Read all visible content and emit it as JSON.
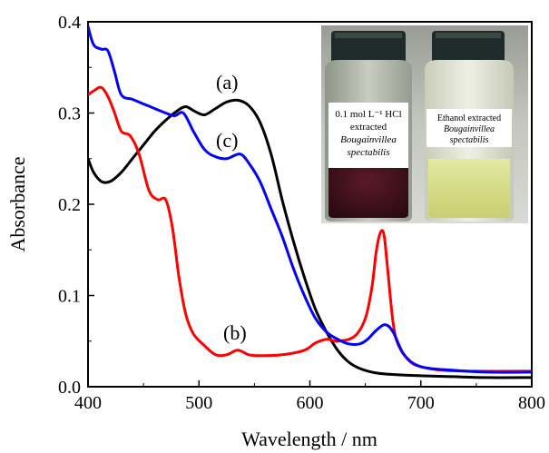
{
  "chart_data": {
    "type": "line",
    "xlabel": "Wavelength / nm",
    "ylabel": "Absorbance",
    "xlim": [
      400,
      800
    ],
    "ylim": [
      0.0,
      0.4
    ],
    "xticks": [
      "400",
      "500",
      "600",
      "700",
      "800"
    ],
    "yticks": [
      "0.0",
      "0.1",
      "0.2",
      "0.3",
      "0.4"
    ],
    "grid": false,
    "legend": "none",
    "series": [
      {
        "label": "(a)",
        "color": "#000000",
        "x": [
          400,
          405,
          412,
          420,
          430,
          440,
          450,
          460,
          470,
          480,
          488,
          496,
          505,
          515,
          525,
          535,
          545,
          555,
          565,
          575,
          585,
          595,
          605,
          615,
          625,
          635,
          645,
          660,
          680,
          700,
          730,
          760,
          800
        ],
        "y": [
          0.25,
          0.235,
          0.225,
          0.225,
          0.235,
          0.25,
          0.265,
          0.28,
          0.292,
          0.302,
          0.307,
          0.302,
          0.298,
          0.305,
          0.312,
          0.314,
          0.308,
          0.29,
          0.255,
          0.205,
          0.16,
          0.12,
          0.085,
          0.06,
          0.04,
          0.027,
          0.02,
          0.015,
          0.013,
          0.012,
          0.011,
          0.01,
          0.01
        ]
      },
      {
        "label": "(b)",
        "color": "#ff0000",
        "x": [
          400,
          406,
          412,
          418,
          424,
          430,
          438,
          446,
          455,
          463,
          470,
          476,
          482,
          488,
          495,
          505,
          515,
          525,
          535,
          545,
          555,
          575,
          595,
          605,
          615,
          625,
          640,
          650,
          656,
          660,
          664,
          667,
          670,
          675,
          680,
          690,
          700,
          720,
          750,
          800
        ],
        "y": [
          0.32,
          0.325,
          0.328,
          0.318,
          0.3,
          0.28,
          0.275,
          0.255,
          0.215,
          0.205,
          0.205,
          0.175,
          0.12,
          0.08,
          0.058,
          0.045,
          0.035,
          0.035,
          0.04,
          0.035,
          0.034,
          0.035,
          0.04,
          0.048,
          0.052,
          0.05,
          0.055,
          0.075,
          0.11,
          0.15,
          0.17,
          0.165,
          0.13,
          0.07,
          0.045,
          0.028,
          0.022,
          0.018,
          0.017,
          0.017
        ]
      },
      {
        "label": "(c)",
        "color": "#0000ff",
        "x": [
          400,
          405,
          412,
          418,
          424,
          430,
          440,
          450,
          460,
          470,
          478,
          486,
          495,
          505,
          515,
          525,
          537,
          545,
          555,
          565,
          575,
          585,
          595,
          605,
          615,
          625,
          635,
          645,
          652,
          660,
          668,
          675,
          685,
          700,
          730,
          760,
          800
        ],
        "y": [
          0.395,
          0.375,
          0.37,
          0.368,
          0.345,
          0.32,
          0.315,
          0.31,
          0.305,
          0.3,
          0.297,
          0.3,
          0.28,
          0.26,
          0.252,
          0.25,
          0.255,
          0.245,
          0.225,
          0.195,
          0.165,
          0.13,
          0.1,
          0.075,
          0.06,
          0.052,
          0.047,
          0.047,
          0.052,
          0.062,
          0.068,
          0.06,
          0.035,
          0.022,
          0.018,
          0.016,
          0.016
        ]
      }
    ],
    "inset": {
      "left_caption": [
        "0.1 mol L⁻¹ HCl",
        "extracted",
        "Bougainvillea",
        "spectabilis"
      ],
      "right_caption": [
        "Ethanol extracted",
        "Bougainvillea",
        "spectabilis"
      ]
    }
  },
  "colors": {
    "axis": "#000000",
    "series_a": "#000000",
    "series_b": "#ff0000",
    "series_c": "#0000ff"
  }
}
